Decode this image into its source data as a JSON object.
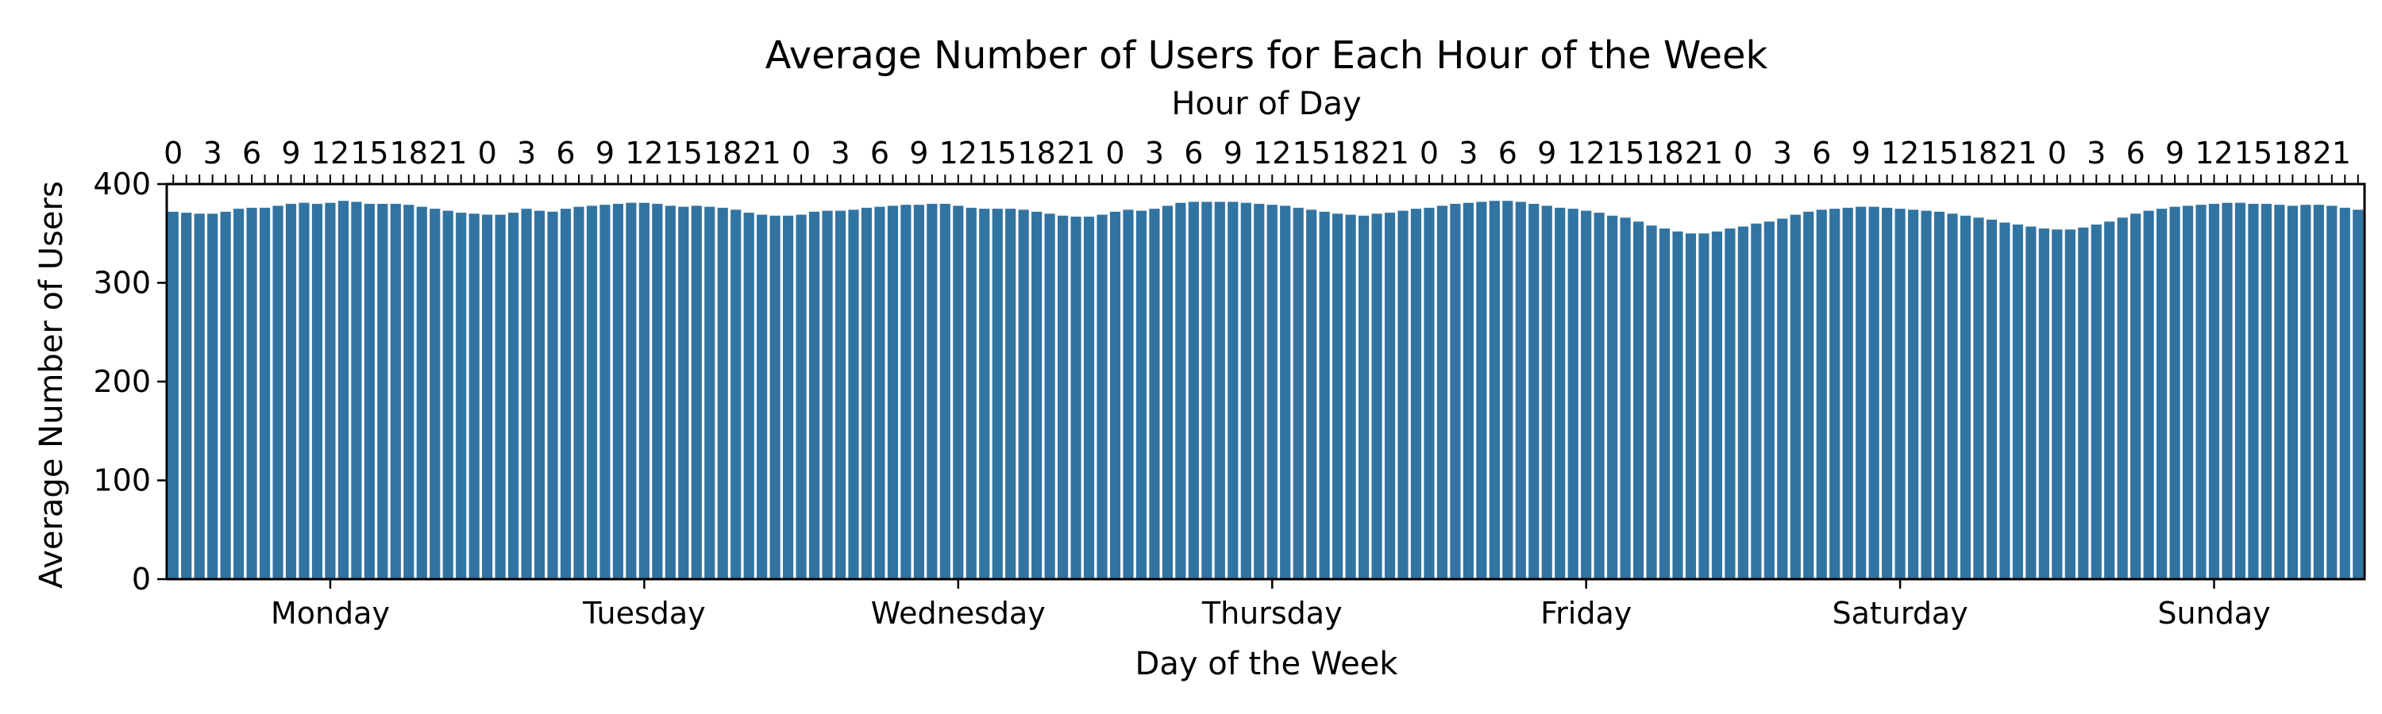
{
  "chart_data": {
    "type": "bar",
    "title": "Average Number of Users for Each Hour of the Week",
    "xlabel": "Day of the Week",
    "ylabel": "Average Number of Users",
    "top_xlabel": "Hour of Day",
    "ylim": [
      0,
      400
    ],
    "yticks": [
      0,
      100,
      200,
      300,
      400
    ],
    "day_labels": [
      "Monday",
      "Tuesday",
      "Wednesday",
      "Thursday",
      "Friday",
      "Saturday",
      "Sunday"
    ],
    "hour_tick_labels": [
      "0",
      "3",
      "6",
      "9",
      "12",
      "15",
      "18",
      "21"
    ],
    "bar_color": "#3274a1",
    "grid": false,
    "values": [
      372,
      371,
      370,
      370,
      372,
      375,
      376,
      376,
      378,
      380,
      381,
      380,
      381,
      383,
      382,
      380,
      380,
      380,
      379,
      377,
      375,
      373,
      371,
      370,
      369,
      369,
      371,
      375,
      373,
      372,
      375,
      377,
      378,
      379,
      380,
      381,
      381,
      380,
      378,
      377,
      378,
      377,
      376,
      374,
      371,
      369,
      368,
      368,
      369,
      372,
      373,
      373,
      374,
      376,
      377,
      378,
      379,
      379,
      380,
      380,
      378,
      376,
      375,
      375,
      375,
      374,
      372,
      370,
      368,
      367,
      367,
      369,
      372,
      374,
      373,
      375,
      378,
      381,
      382,
      382,
      382,
      382,
      381,
      380,
      379,
      378,
      376,
      374,
      372,
      370,
      369,
      368,
      370,
      371,
      373,
      375,
      376,
      378,
      380,
      381,
      382,
      383,
      383,
      382,
      380,
      378,
      376,
      375,
      373,
      371,
      368,
      366,
      362,
      358,
      355,
      352,
      350,
      350,
      352,
      355,
      357,
      360,
      362,
      365,
      369,
      372,
      374,
      375,
      376,
      377,
      377,
      376,
      375,
      374,
      373,
      372,
      370,
      368,
      366,
      364,
      361,
      359,
      357,
      355,
      354,
      354,
      356,
      359,
      362,
      366,
      370,
      373,
      375,
      377,
      378,
      379,
      380,
      381,
      381,
      380,
      380,
      379,
      378,
      379,
      379,
      378,
      376,
      374
    ]
  }
}
